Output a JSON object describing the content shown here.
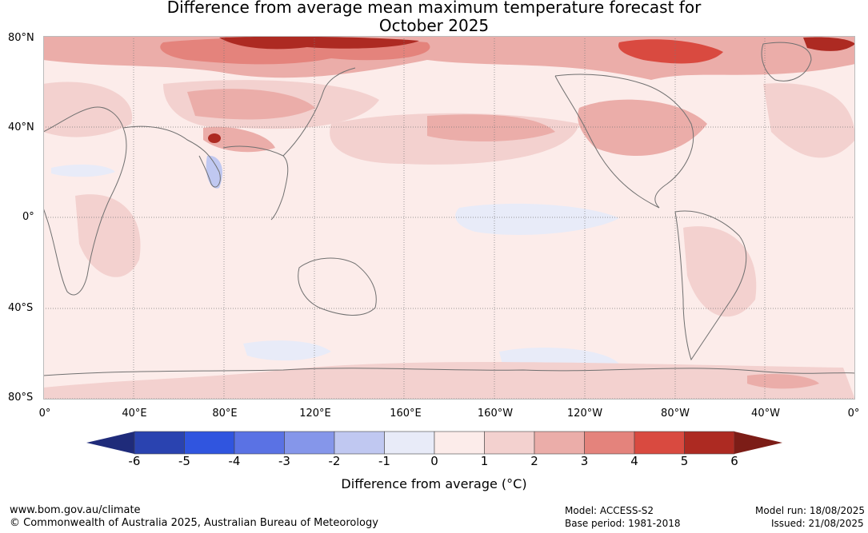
{
  "title": {
    "line1": "Difference from average mean maximum temperature forecast for",
    "line2": "October 2025"
  },
  "latitude_labels": [
    "80°N",
    "40°N",
    "0°",
    "40°S",
    "80°S"
  ],
  "longitude_labels": [
    "0°",
    "40°E",
    "80°E",
    "120°E",
    "160°E",
    "160°W",
    "120°W",
    "80°W",
    "40°W",
    "0°"
  ],
  "colorbar": {
    "tick_labels": [
      "-6",
      "-5",
      "-4",
      "-3",
      "-2",
      "-1",
      "0",
      "1",
      "2",
      "3",
      "4",
      "5",
      "6"
    ],
    "colors": [
      "#1f2b7a",
      "#2a43b0",
      "#3055df",
      "#5a72e4",
      "#8596ea",
      "#c0c8f1",
      "#e8ebf8",
      "#fcecea",
      "#f3d1cf",
      "#ebada9",
      "#e4837c",
      "#d94a40",
      "#ad2a22",
      "#7c1d17"
    ],
    "label": "Difference from average (°C)"
  },
  "footer": {
    "website": "www.bom.gov.au/climate",
    "copyright": "© Commonwealth of Australia 2025, Australian Bureau of Meteorology",
    "model": "Model: ACCESS-S2",
    "base_period": "Base period: 1981-2018",
    "model_run": "Model run: 18/08/2025",
    "issued": "Issued: 21/08/2025"
  },
  "map_colors": {
    "ocean_base": "#fcecea",
    "light_warm": "#f3d1cf",
    "mid_warm": "#ebada9",
    "warm": "#e4837c",
    "hot": "#d94a40",
    "very_hot": "#ad2a22",
    "cool": "#e8ebf8",
    "coast": "#707070",
    "grid": "#777777"
  }
}
